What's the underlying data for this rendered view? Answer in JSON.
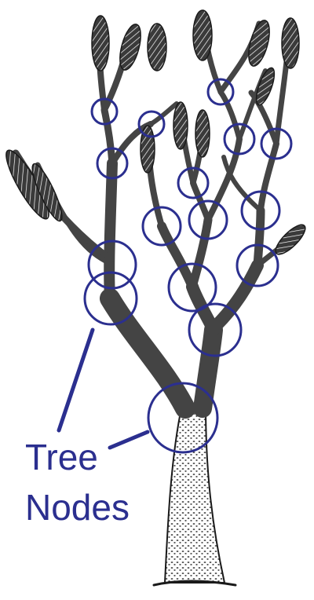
{
  "figure": {
    "callout": {
      "line1": "Tree",
      "line2": "Nodes"
    },
    "colors": {
      "node_circle": "#2b2f8f",
      "callout_text": "#2b2f8f",
      "tree_ink": "#1a1a1a",
      "background": "#ffffff"
    },
    "illustration": "branching-tree-drawing"
  }
}
